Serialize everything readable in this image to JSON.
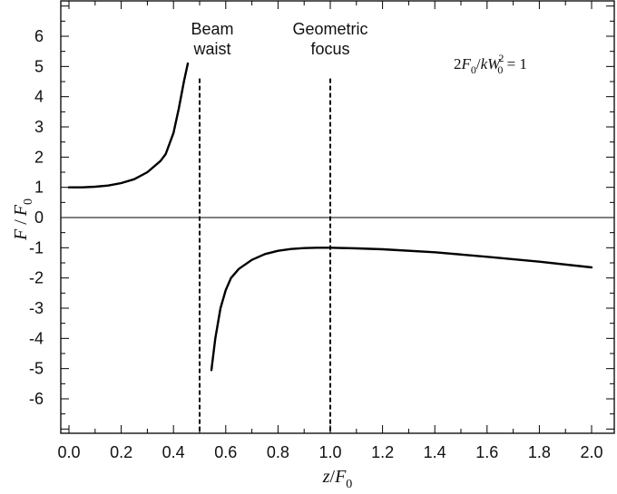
{
  "chart_data": {
    "type": "line",
    "xlabel": {
      "var": "z",
      "sep": "/",
      "base": "F",
      "sub": "0"
    },
    "ylabel": {
      "var": "F",
      "sep": " /",
      "base": "F",
      "sub": "0"
    },
    "xlim": [
      0.0,
      2.15
    ],
    "ylim": [
      -7,
      7
    ],
    "grid": false,
    "xticks": [
      0.0,
      0.2,
      0.4,
      0.6,
      0.8,
      1.0,
      1.2,
      1.4,
      1.6,
      1.8,
      2.0
    ],
    "xtick_labels": [
      "0.0",
      "0.2",
      "0.4",
      "0.6",
      "0.8",
      "1.0",
      "1.2",
      "1.4",
      "1.6",
      "1.8",
      "2.0"
    ],
    "yticks": [
      6,
      5,
      4,
      3,
      2,
      1,
      0,
      -1,
      -2,
      -3,
      -4,
      -5,
      -6
    ],
    "ytick_labels": [
      "6",
      "5",
      "4",
      "3",
      "2",
      "1",
      "0",
      "-1",
      "-2",
      "-3",
      "-4",
      "-5",
      "-6"
    ],
    "zero_line": 0,
    "series": [
      {
        "x": [
          0.0,
          0.05,
          0.1,
          0.15,
          0.2,
          0.25,
          0.3,
          0.35,
          0.37,
          0.4,
          0.42,
          0.44,
          0.455
        ],
        "values": [
          1.0,
          1.0,
          1.02,
          1.06,
          1.14,
          1.27,
          1.5,
          1.87,
          2.1,
          2.8,
          3.6,
          4.5,
          5.1
        ]
      },
      {
        "x": [
          0.545,
          0.56,
          0.58,
          0.6,
          0.62,
          0.65,
          0.7,
          0.75,
          0.8,
          0.85,
          0.9,
          0.95,
          1.0,
          1.1,
          1.2,
          1.4,
          1.6,
          1.8,
          2.0
        ],
        "values": [
          -5.05,
          -4.0,
          -3.0,
          -2.4,
          -2.0,
          -1.7,
          -1.4,
          -1.21,
          -1.1,
          -1.04,
          -1.01,
          -1.0,
          -1.0,
          -1.02,
          -1.05,
          -1.15,
          -1.3,
          -1.46,
          -1.65
        ]
      }
    ],
    "vlines": [
      {
        "x": 0.5,
        "label_lines": [
          "Beam",
          "waist"
        ],
        "y_top": 4.6
      },
      {
        "x": 1.0,
        "label_lines": [
          "Geometric",
          "focus"
        ],
        "y_top": 4.6
      }
    ],
    "equation": {
      "lhs": "2",
      "F": "F",
      "F_sub": "0",
      "slash": "/",
      "k": "k",
      "W": "W",
      "W_sub": "0",
      "W_sup": "2",
      "rhs": " = 1"
    }
  }
}
